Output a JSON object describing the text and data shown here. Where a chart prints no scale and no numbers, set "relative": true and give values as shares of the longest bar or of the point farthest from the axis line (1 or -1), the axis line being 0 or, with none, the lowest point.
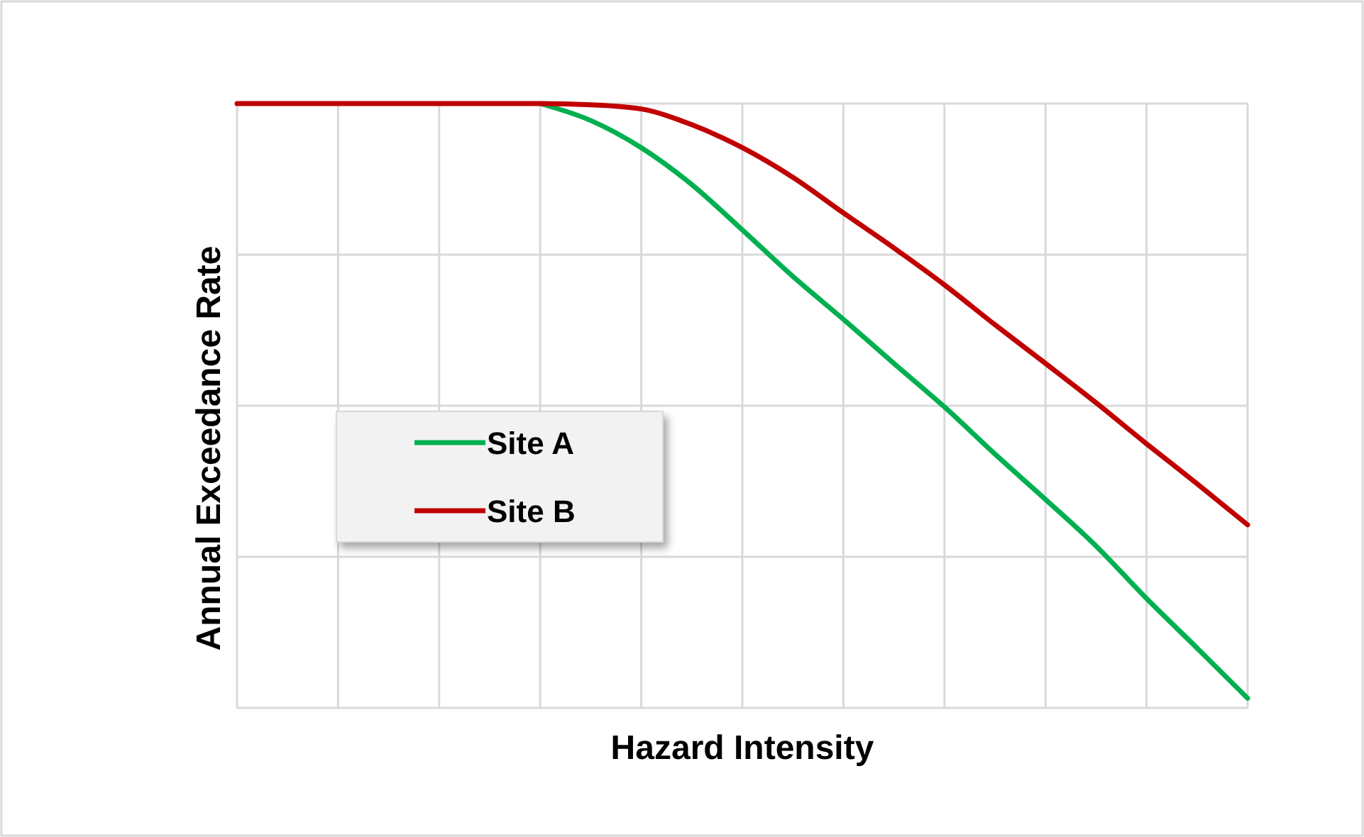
{
  "chart_data": {
    "type": "line",
    "relative": true,
    "xlabel": "Hazard Intensity",
    "ylabel": "Annual Exceedance Rate",
    "categories": [
      null,
      null,
      null,
      null,
      null,
      null,
      null,
      null,
      null,
      null,
      null,
      null,
      null,
      null,
      null,
      null,
      null,
      null,
      null,
      null,
      null
    ],
    "series": [
      {
        "name": "Site A",
        "color": "#00b050",
        "values": [
          null,
          null,
          null,
          null,
          null,
          null,
          1,
          0.972,
          0.927,
          0.866,
          0.791,
          0.714,
          0.643,
          0.57,
          0.498,
          0.42,
          0.345,
          0.268,
          0.181,
          0.099,
          0.016
        ]
      },
      {
        "name": "Site B",
        "color": "#c00000",
        "values": [
          1,
          1,
          1,
          1,
          1,
          1,
          1,
          0.998,
          0.991,
          0.965,
          0.927,
          0.878,
          0.819,
          0.761,
          0.7,
          0.634,
          0.57,
          0.505,
          0.437,
          0.371,
          0.303
        ]
      }
    ],
    "grid": true,
    "legend": "left",
    "marker": "none",
    "line_style": "solid"
  }
}
